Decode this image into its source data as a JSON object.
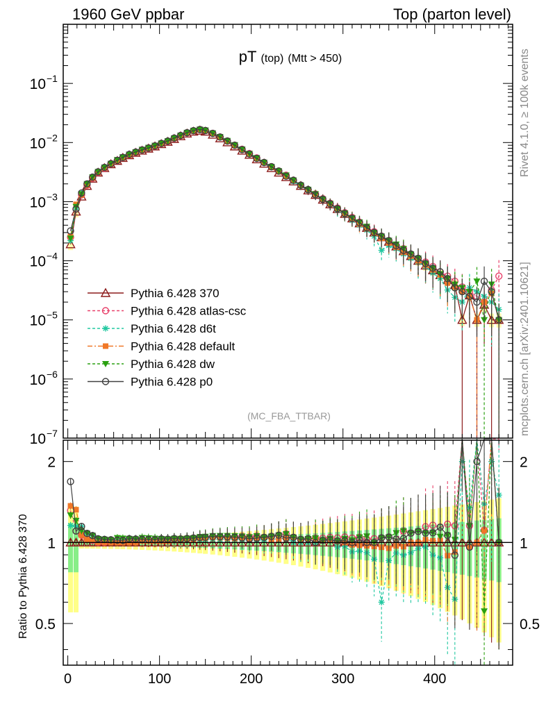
{
  "header": {
    "left": "1960 GeV ppbar",
    "right": "Top (parton level)"
  },
  "side": {
    "rivet": "Rivet 4.1.0, ≥ 100k events",
    "mcplots": "mcplots.cern.ch [arXiv:2401.10621]"
  },
  "watermark": "(MC_FBA_TTBAR)",
  "chart_data": {
    "type": "line",
    "title": "pT (top) (Mtt > 450)",
    "title_main": "pT",
    "title_sub": "(top)",
    "title_sub2": "(Mtt > 450)",
    "xlabel": "",
    "ylabel": "",
    "ratio_ylabel": "Ratio to Pythia 6.428 370",
    "xlim": [
      -5,
      485
    ],
    "ylim": [
      1e-07,
      1
    ],
    "ratio_ylim": [
      0.35,
      2.4
    ],
    "yscale": "log",
    "x_ticks": [
      0,
      100,
      200,
      300,
      400
    ],
    "x_tick_labels": [
      "0",
      "100",
      "200",
      "300",
      "400"
    ],
    "y_ticks": [
      1e-07,
      1e-06,
      1e-05,
      0.0001,
      0.001,
      0.01,
      0.1
    ],
    "y_tick_labels": [
      {
        "base": "10",
        "exp": "−7"
      },
      {
        "base": "10",
        "exp": "−6"
      },
      {
        "base": "10",
        "exp": "−5"
      },
      {
        "base": "10",
        "exp": "−4"
      },
      {
        "base": "10",
        "exp": "−3"
      },
      {
        "base": "10",
        "exp": "−2"
      },
      {
        "base": "10",
        "exp": "−1"
      }
    ],
    "ratio_ticks": [
      0.5,
      1,
      2
    ],
    "ratio_tick_labels": [
      "0.5",
      "1",
      "2"
    ],
    "legend_position": "lower-left",
    "series": [
      {
        "name": "Pythia 6.428 370",
        "color": "#8b1a1a",
        "marker": "triangle-open",
        "dash": "solid",
        "x": [
          3,
          9,
          15,
          21,
          27,
          33,
          40,
          47,
          54,
          60,
          67,
          74,
          81,
          88,
          95,
          102,
          109,
          116,
          123,
          130,
          137,
          144,
          150,
          158,
          166,
          174,
          182,
          190,
          198,
          206,
          214,
          222,
          230,
          238,
          246,
          254,
          262,
          270,
          278,
          286,
          294,
          302,
          310,
          318,
          326,
          334,
          342,
          350,
          358,
          366,
          374,
          382,
          390,
          398,
          406,
          414,
          422,
          430,
          438,
          446,
          454,
          462,
          470
        ],
        "values": [
          0.00019,
          0.00068,
          0.00122,
          0.00185,
          0.00245,
          0.0031,
          0.0037,
          0.0043,
          0.0049,
          0.0055,
          0.0061,
          0.0067,
          0.0073,
          0.0079,
          0.0086,
          0.0094,
          0.0103,
          0.0115,
          0.0128,
          0.0142,
          0.0153,
          0.0159,
          0.0153,
          0.0136,
          0.0118,
          0.0101,
          0.0086,
          0.0073,
          0.0062,
          0.0052,
          0.0044,
          0.0037,
          0.0031,
          0.0026,
          0.0022,
          0.00185,
          0.00155,
          0.0013,
          0.00108,
          0.0009,
          0.00075,
          0.00062,
          0.00052,
          0.00043,
          0.00036,
          0.0003,
          0.00025,
          0.00021,
          0.000175,
          0.000145,
          0.00012,
          0.0001,
          8.3e-05,
          6.9e-05,
          5.7e-05,
          4.7e-05,
          3.9e-05,
          1e-05,
          2.6e-05,
          1e-05,
          1.8e-05,
          1e-05,
          1e-05
        ]
      },
      {
        "name": "Pythia 6.428 atlas-csc",
        "color": "#e8406a",
        "marker": "circle-open",
        "dash": "dashed",
        "x": [
          3,
          9,
          15,
          21,
          27,
          33,
          40,
          47,
          54,
          60,
          67,
          74,
          81,
          88,
          95,
          102,
          109,
          116,
          123,
          130,
          137,
          144,
          150,
          158,
          166,
          174,
          182,
          190,
          198,
          206,
          214,
          222,
          230,
          238,
          246,
          254,
          262,
          270,
          278,
          286,
          294,
          302,
          310,
          318,
          326,
          334,
          342,
          350,
          358,
          366,
          374,
          382,
          390,
          398,
          406,
          414,
          422,
          430,
          438,
          446,
          454,
          462,
          470
        ],
        "values": [
          0.00025,
          0.00075,
          0.0013,
          0.0019,
          0.0025,
          0.0031,
          0.0037,
          0.0044,
          0.005,
          0.0056,
          0.0062,
          0.0068,
          0.0075,
          0.0081,
          0.0088,
          0.0096,
          0.0105,
          0.0118,
          0.0131,
          0.0146,
          0.0158,
          0.0166,
          0.016,
          0.0143,
          0.0124,
          0.0106,
          0.009,
          0.0077,
          0.0065,
          0.0055,
          0.0046,
          0.0039,
          0.0033,
          0.0028,
          0.0023,
          0.0019,
          0.0016,
          0.00135,
          0.00112,
          0.00094,
          0.00078,
          0.00065,
          0.00054,
          0.00045,
          0.00037,
          0.00031,
          0.00026,
          0.00022,
          0.00018,
          0.00016,
          0.00013,
          0.00011,
          9.5e-05,
          8e-05,
          6.5e-05,
          5.5e-05,
          4.5e-05,
          3.6e-05,
          3e-05,
          2.5e-05,
          2e-05,
          3.2e-05,
          5.5e-05
        ]
      },
      {
        "name": "Pythia 6.428 d6t",
        "color": "#20c8a0",
        "marker": "star",
        "dash": "dashed",
        "x": [
          3,
          9,
          15,
          21,
          27,
          33,
          40,
          47,
          54,
          60,
          67,
          74,
          81,
          88,
          95,
          102,
          109,
          116,
          123,
          130,
          137,
          144,
          150,
          158,
          166,
          174,
          182,
          190,
          198,
          206,
          214,
          222,
          230,
          238,
          246,
          254,
          262,
          270,
          278,
          286,
          294,
          302,
          310,
          318,
          326,
          334,
          342,
          350,
          358,
          366,
          374,
          382,
          390,
          398,
          406,
          414,
          422,
          430,
          438,
          446,
          454,
          462,
          470
        ],
        "values": [
          0.00022,
          0.00078,
          0.0014,
          0.002,
          0.0026,
          0.0032,
          0.0038,
          0.0044,
          0.005,
          0.0056,
          0.0062,
          0.0068,
          0.0074,
          0.008,
          0.0087,
          0.0095,
          0.0104,
          0.0116,
          0.0129,
          0.0144,
          0.0156,
          0.0163,
          0.0157,
          0.014,
          0.0121,
          0.0104,
          0.0088,
          0.0075,
          0.0063,
          0.0053,
          0.0045,
          0.0038,
          0.0032,
          0.0027,
          0.0022,
          0.00185,
          0.00155,
          0.0013,
          0.0011,
          0.00092,
          0.00072,
          0.0006,
          0.00048,
          0.0004,
          0.00033,
          0.00026,
          0.00015,
          0.00018,
          0.00016,
          0.00013,
          0.00011,
          9.5e-05,
          8e-05,
          6.2e-05,
          5e-05,
          3.2e-05,
          2.4e-05,
          2e-05,
          3.5e-05,
          3e-05,
          2.5e-05,
          2e-05,
          1.5e-05
        ]
      },
      {
        "name": "Pythia 6.428 default",
        "color": "#f07828",
        "marker": "square",
        "dash": "dashdot",
        "x": [
          3,
          9,
          15,
          21,
          27,
          33,
          40,
          47,
          54,
          60,
          67,
          74,
          81,
          88,
          95,
          102,
          109,
          116,
          123,
          130,
          137,
          144,
          150,
          158,
          166,
          174,
          182,
          190,
          198,
          206,
          214,
          222,
          230,
          238,
          246,
          254,
          262,
          270,
          278,
          286,
          294,
          302,
          310,
          318,
          326,
          334,
          342,
          350,
          358,
          366,
          374,
          382,
          390,
          398,
          406,
          414,
          422,
          430,
          438,
          446,
          454,
          462,
          470
        ],
        "values": [
          0.00026,
          0.0009,
          0.0013,
          0.0019,
          0.0025,
          0.0031,
          0.0037,
          0.0043,
          0.0049,
          0.0055,
          0.0061,
          0.0067,
          0.0074,
          0.008,
          0.0087,
          0.0095,
          0.0104,
          0.0117,
          0.013,
          0.0145,
          0.0157,
          0.0165,
          0.0159,
          0.0142,
          0.0123,
          0.0105,
          0.0089,
          0.0076,
          0.0064,
          0.0054,
          0.0046,
          0.0038,
          0.0032,
          0.0027,
          0.0023,
          0.0019,
          0.0016,
          0.00134,
          0.0011,
          0.00092,
          0.00076,
          0.00062,
          0.00051,
          0.00042,
          0.00035,
          0.00029,
          0.00024,
          0.0002,
          0.00017,
          0.00014,
          0.00012,
          0.0001,
          8.5e-05,
          7e-05,
          5.8e-05,
          4.2e-05,
          3.6e-05,
          3e-05,
          2.5e-05,
          1e-05,
          2e-05,
          2.8e-05,
          1e-05
        ]
      },
      {
        "name": "Pythia 6.428 dw",
        "color": "#2aa010",
        "marker": "triangle-down",
        "dash": "dashed",
        "x": [
          3,
          9,
          15,
          21,
          27,
          33,
          40,
          47,
          54,
          60,
          67,
          74,
          81,
          88,
          95,
          102,
          109,
          116,
          123,
          130,
          137,
          144,
          150,
          158,
          166,
          174,
          182,
          190,
          198,
          206,
          214,
          222,
          230,
          238,
          246,
          254,
          262,
          270,
          278,
          286,
          294,
          302,
          310,
          318,
          326,
          334,
          342,
          350,
          358,
          366,
          374,
          382,
          390,
          398,
          406,
          414,
          422,
          430,
          438,
          446,
          454,
          462,
          470
        ],
        "values": [
          0.00024,
          0.00082,
          0.00135,
          0.002,
          0.0026,
          0.0032,
          0.0038,
          0.0044,
          0.0051,
          0.0057,
          0.0063,
          0.0069,
          0.0076,
          0.0082,
          0.0089,
          0.0097,
          0.0106,
          0.0119,
          0.0132,
          0.0147,
          0.0159,
          0.0167,
          0.0161,
          0.0144,
          0.0125,
          0.0107,
          0.0091,
          0.0077,
          0.0065,
          0.0055,
          0.0046,
          0.0039,
          0.0033,
          0.0028,
          0.0023,
          0.0019,
          0.0016,
          0.00135,
          0.0011,
          0.00093,
          0.00076,
          0.00064,
          0.00053,
          0.00045,
          0.00038,
          0.0003,
          0.00026,
          0.00022,
          0.00019,
          0.00016,
          0.00013,
          0.00011,
          9e-05,
          7.5e-05,
          6e-05,
          5e-05,
          4e-05,
          3.5e-05,
          3e-05,
          4.5e-05,
          1e-05,
          4e-05,
          1e-05
        ]
      },
      {
        "name": "Pythia 6.428 p0",
        "color": "#404040",
        "marker": "circle-open",
        "dash": "solid",
        "x": [
          3,
          9,
          15,
          21,
          27,
          33,
          40,
          47,
          54,
          60,
          67,
          74,
          81,
          88,
          95,
          102,
          109,
          116,
          123,
          130,
          137,
          144,
          150,
          158,
          166,
          174,
          182,
          190,
          198,
          206,
          214,
          222,
          230,
          238,
          246,
          254,
          262,
          270,
          278,
          286,
          294,
          302,
          310,
          318,
          326,
          334,
          342,
          350,
          358,
          366,
          374,
          382,
          390,
          398,
          406,
          414,
          422,
          430,
          438,
          446,
          454,
          462,
          470
        ],
        "values": [
          0.00032,
          0.00075,
          0.0014,
          0.002,
          0.0026,
          0.0032,
          0.0038,
          0.0044,
          0.005,
          0.0056,
          0.0063,
          0.0069,
          0.0075,
          0.0081,
          0.0088,
          0.0097,
          0.0106,
          0.0119,
          0.0132,
          0.0147,
          0.0159,
          0.0166,
          0.016,
          0.0143,
          0.0124,
          0.0106,
          0.009,
          0.0076,
          0.0064,
          0.0054,
          0.0046,
          0.0039,
          0.0033,
          0.0027,
          0.0023,
          0.0019,
          0.0016,
          0.0013,
          0.0011,
          0.00092,
          0.00076,
          0.00063,
          0.00052,
          0.00044,
          0.00036,
          0.0003,
          0.00026,
          0.00022,
          0.00018,
          0.00015,
          0.00013,
          0.00011,
          9e-05,
          7.5e-05,
          6.5e-05,
          5e-05,
          3.5e-05,
          3e-05,
          2.5e-05,
          2e-05,
          4.5e-05,
          3e-05,
          1e-05
        ]
      }
    ]
  }
}
